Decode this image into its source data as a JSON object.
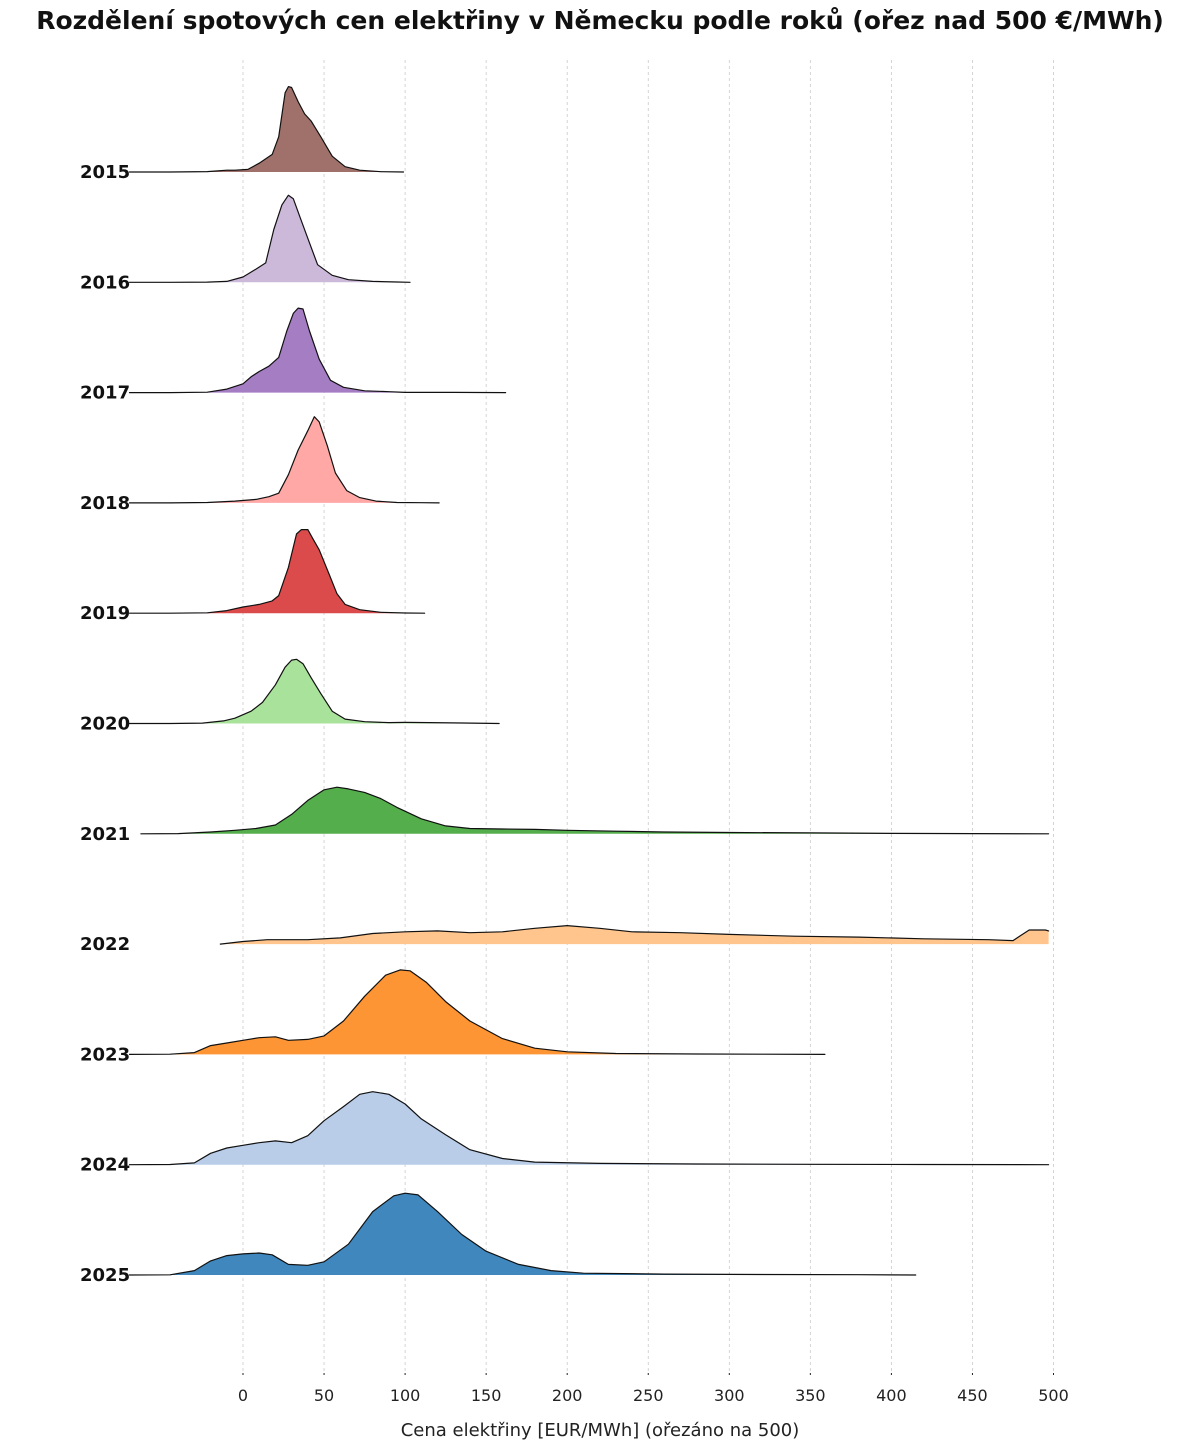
{
  "chart_data": {
    "type": "area",
    "subtype": "ridgeline",
    "title": "Rozdělení spotových cen elektřiny v Německu podle roků (ořez nad 500 €/MWh)",
    "xlabel": "Cena elektřiny [EUR/MWh] (ořezáno na 500)",
    "ylabel": "",
    "xlim": [
      -70,
      505
    ],
    "x_ticks": [
      0,
      50,
      100,
      150,
      200,
      250,
      300,
      350,
      400,
      450,
      500
    ],
    "x_tick_labels": [
      "0",
      "50",
      "100",
      "150",
      "200",
      "250",
      "300",
      "350",
      "400",
      "450",
      "500"
    ],
    "grid": "x only, dashed",
    "legend": "none",
    "series": [
      {
        "name": "2015",
        "color": "#a0716a",
        "points": [
          [
            -70,
            0.0
          ],
          [
            -45,
            0.0
          ],
          [
            -22,
            0.005
          ],
          [
            -10,
            0.02
          ],
          [
            -5,
            0.02
          ],
          [
            3,
            0.03
          ],
          [
            10,
            0.1
          ],
          [
            18,
            0.2
          ],
          [
            22,
            0.4
          ],
          [
            26,
            0.9
          ],
          [
            28,
            0.97
          ],
          [
            30,
            0.96
          ],
          [
            34,
            0.8
          ],
          [
            38,
            0.66
          ],
          [
            42,
            0.58
          ],
          [
            48,
            0.4
          ],
          [
            55,
            0.18
          ],
          [
            63,
            0.06
          ],
          [
            72,
            0.02
          ],
          [
            85,
            0.003
          ],
          [
            99,
            0.0
          ]
        ]
      },
      {
        "name": "2016",
        "color": "#ccb9da",
        "points": [
          [
            -70,
            0.0
          ],
          [
            -45,
            0.0
          ],
          [
            -22,
            0.002
          ],
          [
            -10,
            0.01
          ],
          [
            0,
            0.06
          ],
          [
            8,
            0.15
          ],
          [
            14,
            0.22
          ],
          [
            19,
            0.6
          ],
          [
            24,
            0.88
          ],
          [
            28,
            0.99
          ],
          [
            31,
            0.95
          ],
          [
            35,
            0.75
          ],
          [
            40,
            0.5
          ],
          [
            46,
            0.2
          ],
          [
            55,
            0.08
          ],
          [
            65,
            0.03
          ],
          [
            80,
            0.01
          ],
          [
            95,
            0.003
          ],
          [
            103,
            0.0
          ]
        ]
      },
      {
        "name": "2017",
        "color": "#a57dc3",
        "points": [
          [
            -70,
            0.0
          ],
          [
            -45,
            0.0
          ],
          [
            -22,
            0.005
          ],
          [
            -10,
            0.04
          ],
          [
            0,
            0.1
          ],
          [
            5,
            0.18
          ],
          [
            10,
            0.24
          ],
          [
            16,
            0.3
          ],
          [
            22,
            0.4
          ],
          [
            27,
            0.7
          ],
          [
            31,
            0.9
          ],
          [
            34,
            0.96
          ],
          [
            37,
            0.95
          ],
          [
            41,
            0.7
          ],
          [
            47,
            0.38
          ],
          [
            54,
            0.14
          ],
          [
            62,
            0.06
          ],
          [
            75,
            0.02
          ],
          [
            90,
            0.01
          ],
          [
            100,
            0.002
          ],
          [
            130,
            0.002
          ],
          [
            162,
            0.0
          ]
        ]
      },
      {
        "name": "2018",
        "color": "#ffa8a6",
        "points": [
          [
            -70,
            0.0
          ],
          [
            -45,
            0.0
          ],
          [
            -22,
            0.005
          ],
          [
            -5,
            0.02
          ],
          [
            8,
            0.04
          ],
          [
            16,
            0.07
          ],
          [
            22,
            0.11
          ],
          [
            28,
            0.32
          ],
          [
            34,
            0.6
          ],
          [
            40,
            0.82
          ],
          [
            44,
            0.98
          ],
          [
            47,
            0.92
          ],
          [
            52,
            0.65
          ],
          [
            57,
            0.34
          ],
          [
            64,
            0.14
          ],
          [
            72,
            0.06
          ],
          [
            82,
            0.02
          ],
          [
            95,
            0.005
          ],
          [
            110,
            0.002
          ],
          [
            121,
            0.0
          ]
        ]
      },
      {
        "name": "2019",
        "color": "#dc4b4c",
        "points": [
          [
            -70,
            0.0
          ],
          [
            -45,
            0.0
          ],
          [
            -22,
            0.005
          ],
          [
            -10,
            0.03
          ],
          [
            0,
            0.07
          ],
          [
            10,
            0.1
          ],
          [
            18,
            0.14
          ],
          [
            22,
            0.2
          ],
          [
            28,
            0.52
          ],
          [
            33,
            0.9
          ],
          [
            36,
            0.95
          ],
          [
            40,
            0.95
          ],
          [
            43,
            0.85
          ],
          [
            47,
            0.72
          ],
          [
            53,
            0.45
          ],
          [
            58,
            0.22
          ],
          [
            63,
            0.1
          ],
          [
            72,
            0.04
          ],
          [
            85,
            0.01
          ],
          [
            100,
            0.002
          ],
          [
            112,
            0.0
          ]
        ]
      },
      {
        "name": "2020",
        "color": "#a9e29b",
        "points": [
          [
            -70,
            0.0
          ],
          [
            -45,
            0.0
          ],
          [
            -25,
            0.005
          ],
          [
            -12,
            0.03
          ],
          [
            -5,
            0.06
          ],
          [
            5,
            0.14
          ],
          [
            12,
            0.24
          ],
          [
            20,
            0.44
          ],
          [
            26,
            0.64
          ],
          [
            30,
            0.72
          ],
          [
            33,
            0.73
          ],
          [
            37,
            0.68
          ],
          [
            42,
            0.52
          ],
          [
            48,
            0.34
          ],
          [
            55,
            0.14
          ],
          [
            63,
            0.05
          ],
          [
            75,
            0.02
          ],
          [
            90,
            0.01
          ],
          [
            100,
            0.012
          ],
          [
            115,
            0.01
          ],
          [
            135,
            0.006
          ],
          [
            158,
            0.0
          ]
        ]
      },
      {
        "name": "2021",
        "color": "#53ae4b",
        "points": [
          [
            -63,
            0.0
          ],
          [
            -40,
            0.002
          ],
          [
            -20,
            0.02
          ],
          [
            -5,
            0.04
          ],
          [
            8,
            0.06
          ],
          [
            20,
            0.1
          ],
          [
            30,
            0.22
          ],
          [
            40,
            0.38
          ],
          [
            50,
            0.5
          ],
          [
            58,
            0.53
          ],
          [
            65,
            0.51
          ],
          [
            75,
            0.47
          ],
          [
            85,
            0.4
          ],
          [
            95,
            0.3
          ],
          [
            110,
            0.17
          ],
          [
            125,
            0.09
          ],
          [
            140,
            0.06
          ],
          [
            160,
            0.055
          ],
          [
            180,
            0.05
          ],
          [
            200,
            0.04
          ],
          [
            230,
            0.03
          ],
          [
            260,
            0.02
          ],
          [
            300,
            0.015
          ],
          [
            350,
            0.01
          ],
          [
            400,
            0.005
          ],
          [
            450,
            0.002
          ],
          [
            497,
            0.0
          ]
        ]
      },
      {
        "name": "2022",
        "color": "#ffc58d",
        "points": [
          [
            -14,
            0.0
          ],
          [
            0,
            0.03
          ],
          [
            15,
            0.05
          ],
          [
            40,
            0.05
          ],
          [
            60,
            0.07
          ],
          [
            80,
            0.12
          ],
          [
            100,
            0.14
          ],
          [
            120,
            0.15
          ],
          [
            140,
            0.13
          ],
          [
            160,
            0.14
          ],
          [
            180,
            0.18
          ],
          [
            200,
            0.21
          ],
          [
            220,
            0.18
          ],
          [
            240,
            0.14
          ],
          [
            270,
            0.13
          ],
          [
            300,
            0.11
          ],
          [
            340,
            0.09
          ],
          [
            380,
            0.08
          ],
          [
            420,
            0.06
          ],
          [
            460,
            0.05
          ],
          [
            475,
            0.04
          ],
          [
            480,
            0.1
          ],
          [
            485,
            0.16
          ],
          [
            495,
            0.16
          ],
          [
            497,
            0.15
          ]
        ]
      },
      {
        "name": "2023",
        "color": "#fe9535",
        "points": [
          [
            -70,
            0.0
          ],
          [
            -45,
            0.002
          ],
          [
            -30,
            0.02
          ],
          [
            -20,
            0.1
          ],
          [
            -10,
            0.13
          ],
          [
            0,
            0.16
          ],
          [
            10,
            0.19
          ],
          [
            20,
            0.2
          ],
          [
            28,
            0.16
          ],
          [
            40,
            0.17
          ],
          [
            50,
            0.21
          ],
          [
            62,
            0.38
          ],
          [
            75,
            0.66
          ],
          [
            88,
            0.9
          ],
          [
            97,
            0.96
          ],
          [
            103,
            0.95
          ],
          [
            113,
            0.82
          ],
          [
            125,
            0.6
          ],
          [
            140,
            0.38
          ],
          [
            160,
            0.18
          ],
          [
            180,
            0.07
          ],
          [
            200,
            0.03
          ],
          [
            230,
            0.01
          ],
          [
            280,
            0.004
          ],
          [
            320,
            0.002
          ],
          [
            359,
            0.0
          ]
        ]
      },
      {
        "name": "2024",
        "color": "#b9cde9",
        "points": [
          [
            -70,
            0.0
          ],
          [
            -45,
            0.002
          ],
          [
            -30,
            0.02
          ],
          [
            -20,
            0.13
          ],
          [
            -10,
            0.19
          ],
          [
            0,
            0.22
          ],
          [
            10,
            0.25
          ],
          [
            20,
            0.27
          ],
          [
            30,
            0.25
          ],
          [
            40,
            0.33
          ],
          [
            50,
            0.5
          ],
          [
            62,
            0.66
          ],
          [
            72,
            0.8
          ],
          [
            80,
            0.83
          ],
          [
            90,
            0.8
          ],
          [
            100,
            0.69
          ],
          [
            110,
            0.52
          ],
          [
            125,
            0.34
          ],
          [
            140,
            0.17
          ],
          [
            160,
            0.07
          ],
          [
            180,
            0.03
          ],
          [
            220,
            0.015
          ],
          [
            280,
            0.008
          ],
          [
            350,
            0.004
          ],
          [
            420,
            0.002
          ],
          [
            497,
            0.0
          ]
        ]
      },
      {
        "name": "2025",
        "color": "#3f87bd",
        "points": [
          [
            -70,
            0.0
          ],
          [
            -45,
            0.002
          ],
          [
            -30,
            0.05
          ],
          [
            -20,
            0.16
          ],
          [
            -10,
            0.22
          ],
          [
            0,
            0.24
          ],
          [
            10,
            0.25
          ],
          [
            18,
            0.23
          ],
          [
            28,
            0.12
          ],
          [
            40,
            0.11
          ],
          [
            50,
            0.15
          ],
          [
            65,
            0.35
          ],
          [
            80,
            0.72
          ],
          [
            93,
            0.9
          ],
          [
            100,
            0.93
          ],
          [
            108,
            0.91
          ],
          [
            120,
            0.72
          ],
          [
            135,
            0.46
          ],
          [
            150,
            0.27
          ],
          [
            170,
            0.12
          ],
          [
            190,
            0.05
          ],
          [
            210,
            0.02
          ],
          [
            260,
            0.01
          ],
          [
            320,
            0.006
          ],
          [
            380,
            0.003
          ],
          [
            415,
            0.0
          ]
        ]
      }
    ]
  }
}
